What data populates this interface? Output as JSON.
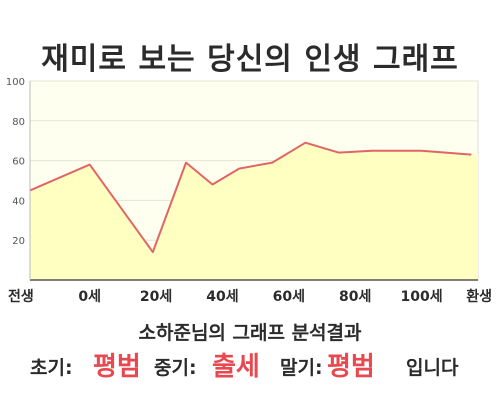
{
  "title": "재미로 보는 당신의 인생 그래프",
  "colors": {
    "line": "#e06666",
    "fill": "#ffffc2",
    "plot_bg": "#fffff0",
    "highlight": "#e8484f"
  },
  "chart_data": {
    "type": "area",
    "x": [
      -18,
      0,
      19,
      29,
      37,
      45,
      55,
      65,
      75,
      85,
      100,
      115
    ],
    "y": [
      45,
      58,
      14,
      59,
      48,
      56,
      59,
      69,
      64,
      65,
      65,
      63
    ],
    "xlim": [
      -18,
      117
    ],
    "ylim": [
      0,
      100
    ],
    "yticks": [
      20,
      40,
      60,
      80,
      100
    ],
    "xticks": [
      {
        "value": -18,
        "label": "전생"
      },
      {
        "value": 0,
        "label": "0세"
      },
      {
        "value": 20,
        "label": "20세"
      },
      {
        "value": 40,
        "label": "40세"
      },
      {
        "value": 60,
        "label": "60세"
      },
      {
        "value": 80,
        "label": "80세"
      },
      {
        "value": 100,
        "label": "100세"
      },
      {
        "value": 117,
        "label": "환생"
      }
    ],
    "grid": true,
    "legend": "none"
  },
  "summary": {
    "headline": "소하준님의 그래프 분석결과",
    "early_label": "초기:",
    "early_value": "평범",
    "middle_label": "중기:",
    "middle_value": "출세",
    "late_label": "말기:",
    "late_value": "평범",
    "suffix": "입니다"
  }
}
